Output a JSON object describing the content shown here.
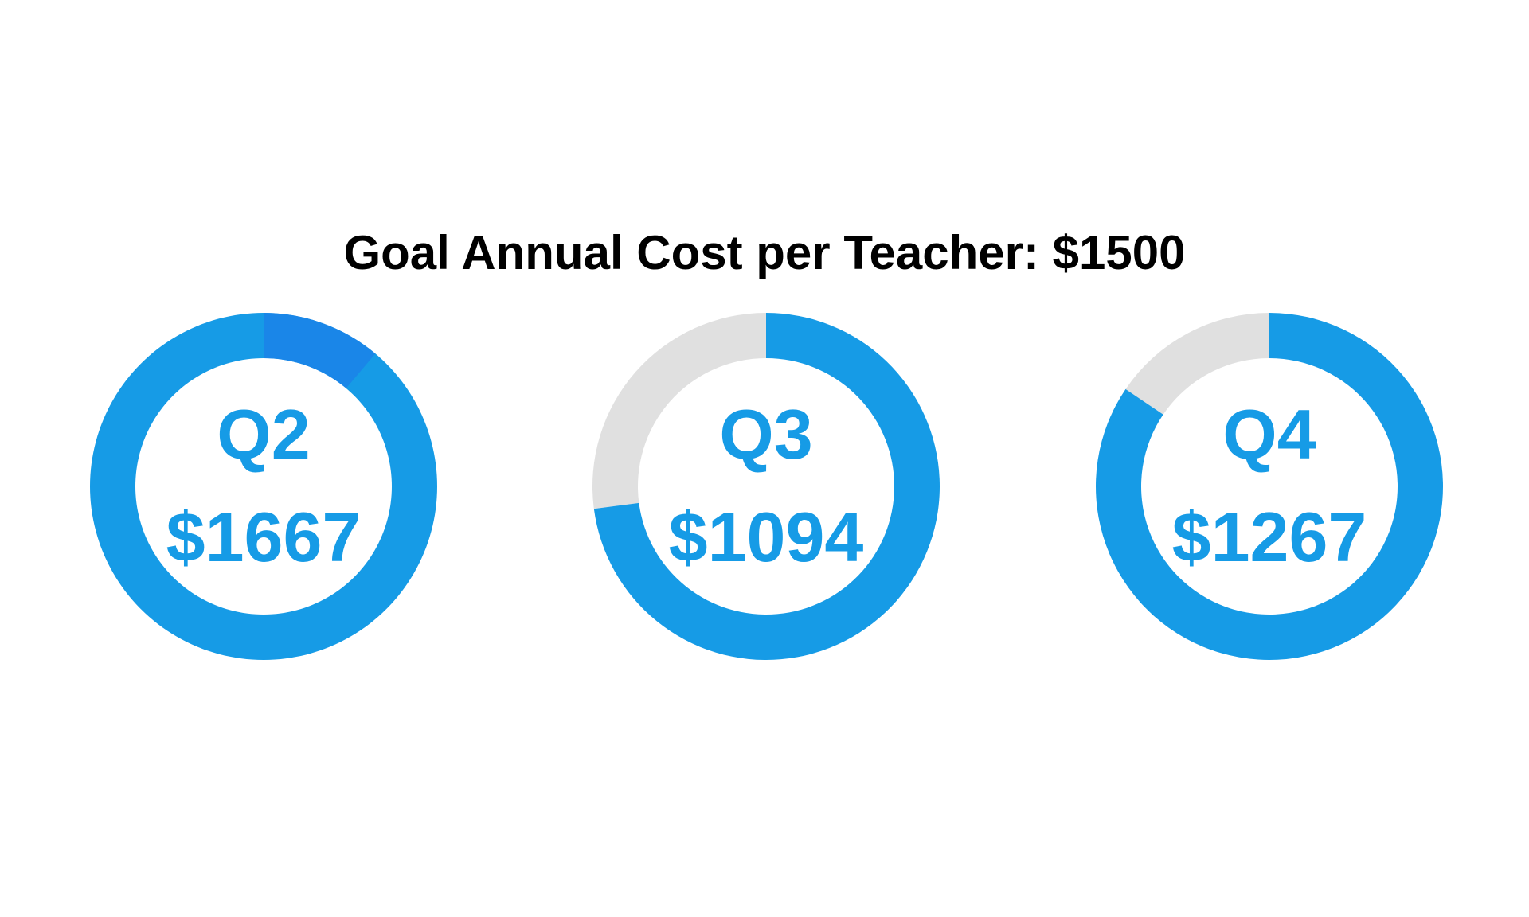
{
  "chart_data": {
    "type": "pie",
    "title": "Goal Annual Cost per Teacher: $1500",
    "goal": 1500,
    "colors": {
      "progress": "#169be6",
      "overflow": "#1a86e8",
      "remaining": "#e0e0e0",
      "label": "#169be6"
    },
    "donuts": [
      {
        "quarter": "Q2",
        "value": 1667,
        "value_label": "$1667"
      },
      {
        "quarter": "Q3",
        "value": 1094,
        "value_label": "$1094"
      },
      {
        "quarter": "Q4",
        "value": 1267,
        "value_label": "$1267"
      }
    ]
  }
}
